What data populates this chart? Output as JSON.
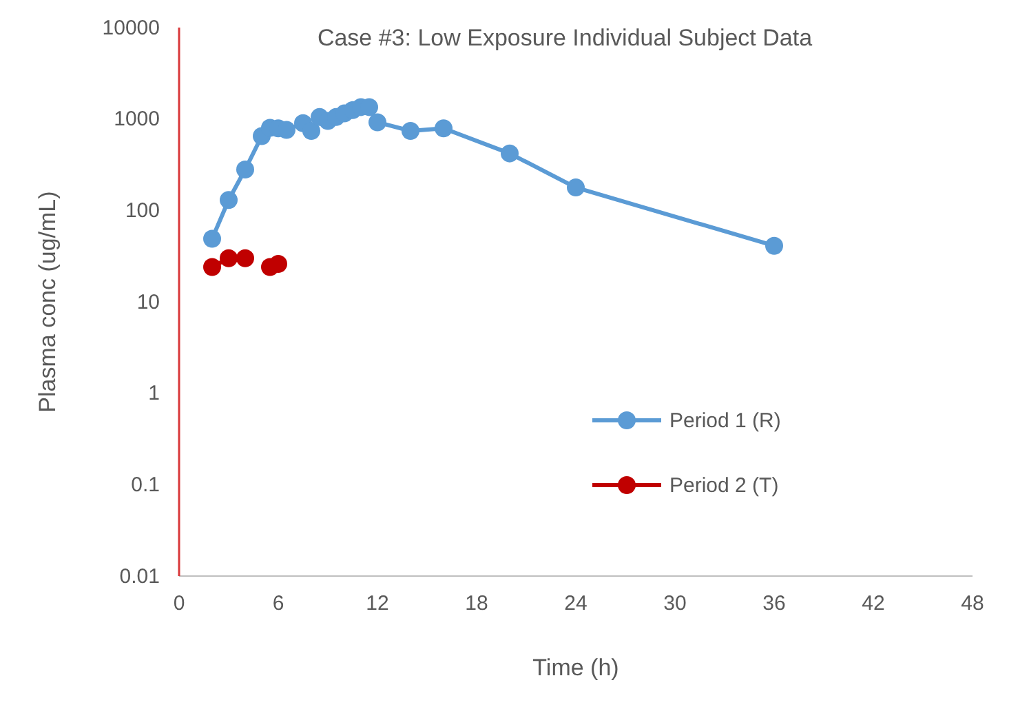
{
  "chart_data": {
    "type": "line",
    "title": "Case #3: Low Exposure Individual Subject Data",
    "xlabel": "Time (h)",
    "ylabel": "Plasma conc (ug/mL)",
    "log": "y",
    "xlim": [
      0,
      48
    ],
    "xticks": [
      0,
      6,
      12,
      18,
      24,
      30,
      36,
      42,
      48
    ],
    "ylim": [
      0.01,
      10000
    ],
    "yticks": [
      0.01,
      0.1,
      1,
      10,
      100,
      1000,
      10000
    ],
    "grid": false,
    "legend": "right",
    "marker": "circle",
    "line_style": "solid",
    "series": [
      {
        "name": "Period 1 (R)",
        "color": "#5b9bd5",
        "x": [
          2,
          3,
          4,
          5,
          5.5,
          6,
          6.5,
          7.5,
          8,
          8.5,
          9,
          9.5,
          10,
          10.5,
          11,
          11.5,
          12,
          14,
          16,
          20,
          24,
          36
        ],
        "values": [
          49,
          130,
          280,
          650,
          800,
          790,
          760,
          900,
          740,
          1050,
          950,
          1050,
          1150,
          1250,
          1350,
          1350,
          920,
          740,
          790,
          420,
          178,
          41
        ]
      },
      {
        "name": "Period 2 (T)",
        "color": "#c00000",
        "x": [
          2,
          3,
          4,
          5,
          5.5,
          6
        ],
        "values": [
          24,
          30,
          30,
          null,
          24,
          26
        ]
      }
    ]
  }
}
